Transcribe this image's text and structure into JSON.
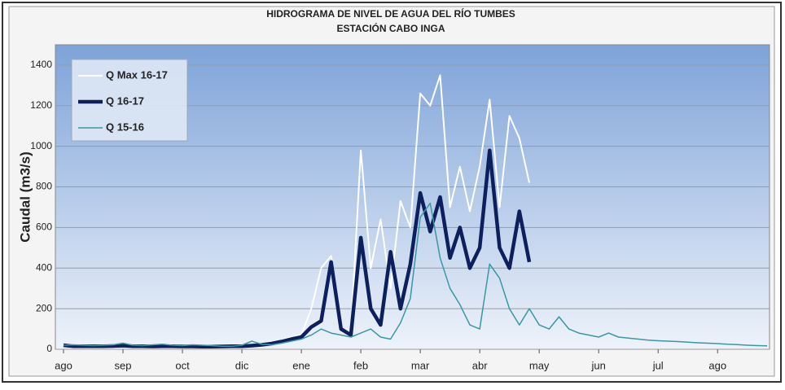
{
  "chart_data": {
    "type": "line",
    "title": "HIDROGRAMA DE NIVEL DE AGUA DEL RÍO TUMBES",
    "subtitle": "ESTACIÓN CABO INGA",
    "y_label": "Caudal (m3/s)",
    "categories": [
      "ago",
      null,
      null,
      null,
      null,
      null,
      "sep",
      null,
      null,
      null,
      null,
      null,
      "oct",
      null,
      null,
      null,
      null,
      null,
      "dic",
      null,
      null,
      null,
      null,
      null,
      "ene",
      null,
      null,
      null,
      null,
      null,
      "feb",
      null,
      null,
      null,
      null,
      null,
      "mar",
      null,
      null,
      null,
      null,
      null,
      "abr",
      null,
      null,
      null,
      null,
      null,
      "may",
      null,
      null,
      null,
      null,
      null,
      "jun",
      null,
      null,
      null,
      null,
      null,
      "jul",
      null,
      null,
      null,
      null,
      null,
      "ago",
      null,
      null,
      null,
      null,
      null
    ],
    "series": [
      {
        "name": "Q Max 16-17",
        "color": "#ffffff",
        "values": [
          22,
          18,
          18,
          17,
          18,
          20,
          22,
          18,
          17,
          16,
          18,
          17,
          16,
          16,
          15,
          15,
          16,
          18,
          18,
          22,
          30,
          35,
          45,
          60,
          70,
          200,
          400,
          460,
          100,
          80,
          980,
          400,
          640,
          300,
          730,
          600,
          1260,
          1200,
          1350,
          700,
          900,
          680,
          900,
          1230,
          700,
          1150,
          1040,
          820,
          null,
          null,
          null,
          null,
          null,
          null,
          null,
          null,
          null,
          null,
          null,
          null,
          null,
          null,
          null,
          null,
          null,
          null,
          null,
          null,
          null,
          null,
          null,
          null
        ]
      },
      {
        "name": "Q 16-17",
        "color": "#0d1f5c",
        "values": [
          20,
          15,
          15,
          15,
          15,
          16,
          18,
          15,
          15,
          14,
          15,
          15,
          14,
          14,
          13,
          13,
          14,
          15,
          15,
          18,
          22,
          28,
          38,
          50,
          60,
          110,
          140,
          430,
          100,
          70,
          550,
          200,
          120,
          480,
          200,
          420,
          770,
          580,
          750,
          450,
          600,
          400,
          500,
          980,
          500,
          400,
          680,
          430,
          null,
          null,
          null,
          null,
          null,
          null,
          null,
          null,
          null,
          null,
          null,
          null,
          null,
          null,
          null,
          null,
          null,
          null,
          null,
          null,
          null,
          null,
          null,
          null
        ]
      },
      {
        "name": "Q 15-16",
        "color": "#3a97a3",
        "values": [
          20,
          22,
          20,
          18,
          20,
          22,
          30,
          20,
          18,
          22,
          25,
          20,
          18,
          22,
          20,
          18,
          15,
          15,
          20,
          40,
          25,
          22,
          30,
          40,
          50,
          70,
          100,
          80,
          70,
          60,
          80,
          100,
          60,
          50,
          130,
          250,
          650,
          720,
          450,
          300,
          220,
          120,
          100,
          420,
          350,
          200,
          120,
          200,
          120,
          100,
          160,
          100,
          80,
          70,
          60,
          80,
          60,
          55,
          50,
          45,
          42,
          40,
          38,
          35,
          32,
          30,
          28,
          25,
          23,
          20,
          18,
          17
        ]
      }
    ],
    "ylim": [
      0,
      1500
    ],
    "yticks": [
      0,
      200,
      400,
      600,
      800,
      1000,
      1200,
      1400
    ],
    "grid": true,
    "legend": "upper left"
  }
}
